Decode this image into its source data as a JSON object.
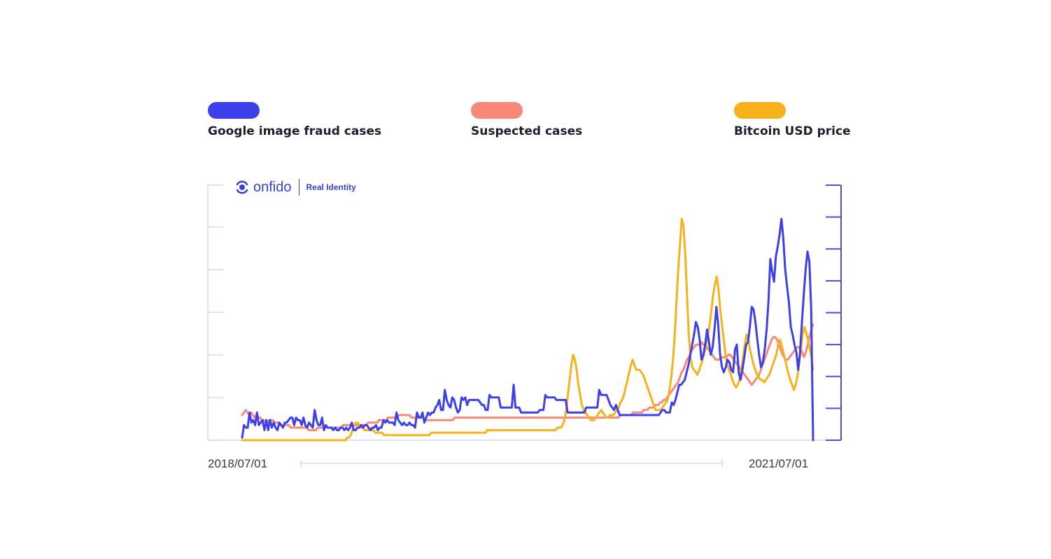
{
  "colors": {
    "google_fraud": "#3d40ea",
    "suspected": "#f8897a",
    "bitcoin": "#f7b21b",
    "axis_left": "#d6d6f3",
    "axis_right": "#4a4fd8"
  },
  "brand": {
    "name": "onfido",
    "tagline": "Real Identity",
    "icon": "onfido-logo-icon"
  },
  "chart_data": {
    "type": "line",
    "xlabel": "",
    "ylabel": "",
    "x_start_label": "2018/07/01",
    "x_end_label": "2021/07/01",
    "grid": false,
    "legend_placement": "top",
    "ylim": [
      0,
      100
    ],
    "series": [
      {
        "name": "Google image fraud cases",
        "color": "#3d40ea",
        "values": [
          1,
          6,
          5,
          5,
          11,
          7,
          8,
          6,
          11,
          6,
          7,
          8,
          4,
          8,
          4,
          8,
          5,
          7,
          5,
          4,
          7,
          6,
          5,
          7,
          7,
          8,
          9,
          9,
          6,
          9,
          8,
          8,
          6,
          9,
          6,
          5,
          7,
          6,
          5,
          12,
          8,
          6,
          6,
          9,
          4,
          6,
          5,
          5,
          5,
          4,
          5,
          4,
          4,
          5,
          5,
          4,
          5,
          4,
          5,
          7,
          4,
          4,
          5,
          5,
          6,
          5,
          6,
          6,
          5,
          4,
          5,
          5,
          6,
          4,
          5,
          5,
          8,
          7,
          8,
          7,
          7,
          7,
          6,
          11,
          8,
          7,
          6,
          7,
          6,
          6,
          7,
          6,
          6,
          5,
          11,
          9,
          9,
          11,
          7,
          9,
          11,
          10,
          11,
          11,
          13,
          14,
          16,
          12,
          12,
          20,
          16,
          14,
          13,
          17,
          16,
          13,
          11,
          12,
          17,
          16,
          17,
          14,
          16,
          16,
          16,
          16,
          16,
          16,
          15,
          14,
          14,
          12,
          12,
          18,
          17,
          17,
          17,
          17,
          17,
          13,
          13,
          13,
          13,
          13,
          13,
          13,
          22,
          13,
          13,
          13,
          11,
          11,
          11,
          11,
          11,
          11,
          11,
          11,
          11,
          11,
          12,
          12,
          12,
          18,
          17,
          17,
          17,
          17,
          17,
          16,
          16,
          16,
          16,
          16,
          16,
          11,
          11,
          11,
          11,
          11,
          11,
          11,
          11,
          11,
          11,
          13,
          13,
          13,
          13,
          13,
          13,
          13,
          20,
          18,
          18,
          18,
          18,
          16,
          14,
          13,
          12,
          14,
          12,
          10,
          10,
          10,
          10,
          10,
          10,
          10,
          10,
          10,
          10,
          10,
          10,
          10,
          10,
          10,
          10,
          10,
          10,
          10,
          10,
          10,
          10,
          11,
          12,
          12,
          11,
          11,
          11,
          15,
          14,
          16,
          19,
          22,
          22,
          23,
          24,
          27,
          30,
          34,
          38,
          42,
          47,
          45,
          40,
          32,
          34,
          38,
          44,
          39,
          34,
          37,
          44,
          53,
          46,
          34,
          29,
          27,
          29,
          32,
          31,
          28,
          27,
          36,
          38,
          27,
          24,
          28,
          33,
          38,
          39,
          45,
          53,
          52,
          47,
          40,
          34,
          29,
          31,
          36,
          44,
          55,
          72,
          67,
          63,
          73,
          77,
          82,
          88,
          80,
          68,
          61,
          55,
          45,
          42,
          38,
          35,
          28,
          35,
          47,
          58,
          68,
          75,
          71,
          52,
          0
        ]
      },
      {
        "name": "Suspected cases",
        "color": "#f8897a",
        "values": [
          10,
          11,
          12,
          11,
          10,
          11,
          10,
          9,
          10,
          9,
          9,
          8,
          8,
          7,
          7,
          8,
          8,
          8,
          7,
          7,
          7,
          6,
          6,
          6,
          6,
          6,
          6,
          5,
          5,
          5,
          5,
          5,
          5,
          5,
          5,
          5,
          5,
          4,
          4,
          4,
          4,
          4,
          5,
          5,
          5,
          5,
          5,
          5,
          5,
          5,
          5,
          5,
          5,
          5,
          5,
          5,
          6,
          6,
          6,
          6,
          6,
          6,
          6,
          6,
          6,
          6,
          6,
          6,
          6,
          6,
          7,
          7,
          7,
          7,
          7,
          7,
          8,
          8,
          8,
          8,
          8,
          9,
          9,
          9,
          9,
          9,
          9,
          10,
          10,
          10,
          10,
          10,
          10,
          10,
          9,
          9,
          9,
          9,
          9,
          9,
          9,
          8,
          8,
          8,
          8,
          8,
          8,
          8,
          8,
          8,
          8,
          8,
          8,
          8,
          8,
          8,
          8,
          8,
          9,
          9,
          9,
          9,
          9,
          9,
          9,
          9,
          9,
          9,
          9,
          9,
          9,
          9,
          9,
          9,
          9,
          9,
          9,
          9,
          9,
          9,
          9,
          9,
          9,
          9,
          9,
          9,
          9,
          9,
          9,
          9,
          9,
          9,
          9,
          9,
          9,
          9,
          9,
          9,
          9,
          9,
          9,
          9,
          9,
          9,
          9,
          9,
          9,
          9,
          9,
          9,
          9,
          9,
          9,
          9,
          9,
          9,
          9,
          9,
          9,
          9,
          9,
          9,
          9,
          9,
          9,
          9,
          9,
          9,
          9,
          9,
          9,
          9,
          9,
          9,
          9,
          9,
          9,
          9,
          9,
          9,
          9,
          9,
          9,
          9,
          9,
          9,
          9,
          9,
          9,
          9,
          10,
          10,
          10,
          10,
          10,
          10,
          10,
          11,
          11,
          11,
          11,
          11,
          11,
          12,
          12,
          12,
          13,
          13,
          13,
          14,
          14,
          14,
          15,
          15,
          16,
          16,
          17,
          18,
          19,
          20,
          21,
          22,
          23,
          25,
          27,
          28,
          30,
          32,
          33,
          35,
          36,
          37,
          38,
          38,
          38,
          39,
          38,
          38,
          37,
          36,
          35,
          34,
          33,
          32,
          32,
          32,
          33,
          33,
          33,
          33,
          34,
          34,
          33,
          32,
          31,
          30,
          29,
          28,
          27,
          26,
          25,
          24,
          23,
          22,
          23,
          24,
          25,
          26,
          28,
          30,
          32,
          34,
          36,
          38,
          40,
          41,
          41,
          40,
          38,
          36,
          34,
          33,
          32,
          32,
          33,
          34,
          35,
          36,
          37,
          37,
          36,
          35,
          33,
          35,
          38,
          41,
          44,
          46
        ]
      },
      {
        "name": "Bitcoin USD price",
        "color": "#f7b21b",
        "values": [
          0,
          0,
          0,
          0,
          0,
          0,
          0,
          0,
          0,
          0,
          0,
          0,
          0,
          0,
          0,
          0,
          0,
          0,
          0,
          0,
          0,
          0,
          0,
          0,
          0,
          0,
          0,
          0,
          0,
          0,
          0,
          0,
          0,
          0,
          0,
          0,
          0,
          0,
          0,
          0,
          0,
          0,
          0,
          0,
          0,
          0,
          0,
          0,
          0,
          0,
          0,
          0,
          0,
          0,
          0,
          0,
          0,
          0,
          0,
          0,
          1,
          1,
          2,
          4,
          6,
          7,
          7,
          6,
          5,
          5,
          4,
          4,
          4,
          4,
          4,
          4,
          3,
          3,
          3,
          3,
          3,
          2,
          2,
          2,
          2,
          2,
          2,
          2,
          2,
          2,
          2,
          2,
          2,
          2,
          2,
          2,
          2,
          2,
          2,
          2,
          2,
          2,
          2,
          2,
          2,
          2,
          2,
          2,
          3,
          3,
          3,
          3,
          3,
          3,
          3,
          3,
          3,
          3,
          3,
          3,
          3,
          3,
          3,
          3,
          3,
          3,
          3,
          3,
          3,
          3,
          3,
          3,
          3,
          3,
          3,
          3,
          3,
          3,
          3,
          3,
          4,
          4,
          4,
          4,
          4,
          4,
          4,
          4,
          4,
          4,
          4,
          4,
          4,
          4,
          4,
          4,
          4,
          4,
          4,
          4,
          4,
          4,
          4,
          4,
          4,
          4,
          4,
          4,
          4,
          4,
          4,
          4,
          4,
          4,
          4,
          4,
          4,
          4,
          4,
          4,
          5,
          5,
          5,
          6,
          8,
          12,
          18,
          24,
          30,
          34,
          32,
          28,
          22,
          18,
          14,
          12,
          11,
          10,
          9,
          8,
          8,
          8,
          9,
          10,
          11,
          12,
          11,
          10,
          9,
          9,
          10,
          10,
          10,
          11,
          12,
          13,
          15,
          16,
          18,
          21,
          24,
          27,
          30,
          32,
          30,
          28,
          28,
          28,
          27,
          26,
          24,
          22,
          20,
          18,
          16,
          14,
          12,
          12,
          12,
          12,
          13,
          14,
          15,
          16,
          20,
          25,
          32,
          42,
          55,
          68,
          78,
          88,
          85,
          74,
          58,
          42,
          33,
          29,
          28,
          27,
          26,
          28,
          30,
          32,
          35,
          38,
          42,
          46,
          52,
          58,
          62,
          65,
          60,
          52,
          46,
          40,
          34,
          30,
          28,
          26,
          24,
          22,
          21,
          22,
          24,
          28,
          33,
          38,
          42,
          40,
          36,
          33,
          30,
          28,
          26,
          25,
          24,
          24,
          23,
          24,
          25,
          26,
          28,
          30,
          32,
          34,
          38,
          40,
          38,
          35,
          32,
          29,
          26,
          24,
          22,
          20,
          22,
          25,
          30,
          36,
          42,
          45,
          43,
          40,
          37,
          33,
          28
        ]
      }
    ]
  }
}
